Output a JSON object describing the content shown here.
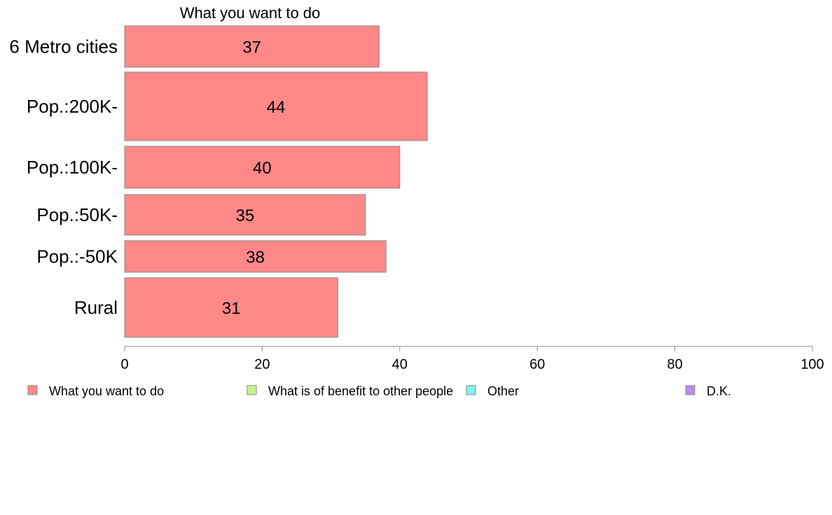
{
  "chart_data": {
    "type": "bar",
    "orientation": "horizontal",
    "title": "What you want to do",
    "categories": [
      "6 Metro cities",
      "Pop.:200K-",
      "Pop.:100K-",
      "Pop.:50K-",
      "Pop.:-50K",
      "Rural"
    ],
    "series": [
      {
        "name": "What you want to do",
        "values": [
          37,
          44,
          40,
          35,
          38,
          31
        ]
      }
    ],
    "xlim": [
      0,
      100
    ],
    "xticks": [
      0,
      20,
      40,
      60,
      80,
      100
    ],
    "grid": false,
    "legend_position": "bottom",
    "legend": [
      {
        "label": "What you want to do",
        "color": "#ff8888"
      },
      {
        "label": "What is of benefit to other people",
        "color": "#c6f58a"
      },
      {
        "label": "Other",
        "color": "#7ff5f0"
      },
      {
        "label": "D.K.",
        "color": "#b98af0"
      }
    ],
    "bar_color": "#ff8888",
    "bar_edge_color": "#888888"
  }
}
